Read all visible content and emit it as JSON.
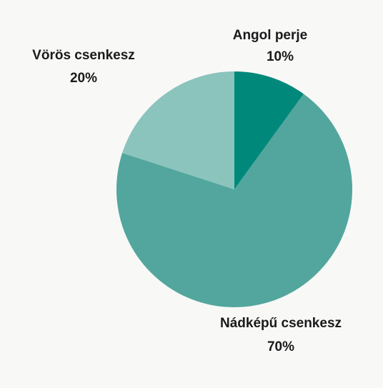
{
  "chart_data": {
    "type": "pie",
    "categories": [
      "Angol perje",
      "Nádképű csenkesz",
      "Vörös csenkesz"
    ],
    "values": [
      10,
      70,
      20
    ],
    "value_labels": [
      "10%",
      "70%",
      "20%"
    ],
    "colors": [
      "#00897b",
      "#52a69d",
      "#8ac4bc"
    ],
    "start": "12 o'clock",
    "direction": "clockwise"
  }
}
